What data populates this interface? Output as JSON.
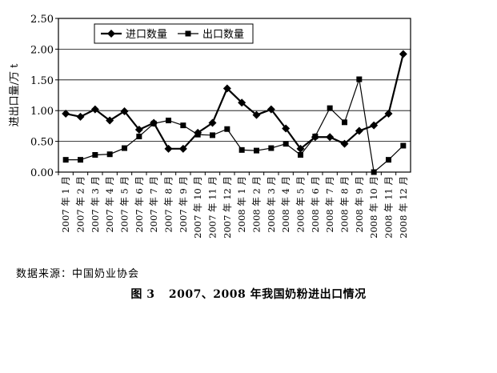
{
  "chart_data": {
    "type": "line",
    "ylabel": "进出口量/万 t",
    "ylim": [
      0,
      2.5
    ],
    "yticks": [
      "0.00",
      "0.50",
      "1.00",
      "1.50",
      "2.00",
      "2.50"
    ],
    "grid": "horizontal",
    "legend_position": "top-left",
    "categories": [
      "2007 年 1 月",
      "2007 年 2 月",
      "2007 年 3 月",
      "2007 年 4 月",
      "2007 年 5 月",
      "2007 年 6 月",
      "2007 年 7 月",
      "2007 年 8 月",
      "2007 年 9 月",
      "2007 年 10 月",
      "2007 年 11 月",
      "2007 年 12 月",
      "2008 年 1 月",
      "2008 年 2 月",
      "2008 年 3 月",
      "2008 年 4 月",
      "2008 年 5 月",
      "2008 年 6 月",
      "2008 年 7 月",
      "2008 年 8 月",
      "2008 年 9 月",
      "2008 年 10 月",
      "2008 年 11 月",
      "2008 年 12 月"
    ],
    "series": [
      {
        "name": "进口数量",
        "marker": "diamond",
        "values": [
          0.95,
          0.9,
          1.02,
          0.84,
          0.99,
          0.69,
          0.8,
          0.38,
          0.38,
          0.64,
          0.8,
          1.36,
          1.13,
          0.93,
          1.02,
          0.71,
          0.38,
          0.57,
          0.57,
          0.46,
          0.67,
          0.76,
          0.95,
          1.92
        ]
      },
      {
        "name": "出口数量",
        "marker": "square",
        "values": [
          0.2,
          0.2,
          0.28,
          0.29,
          0.39,
          0.58,
          0.79,
          0.84,
          0.76,
          0.61,
          0.6,
          0.7,
          0.36,
          0.35,
          0.39,
          0.46,
          0.28,
          0.58,
          1.04,
          0.81,
          1.51,
          0.0,
          0.2,
          0.43
        ]
      }
    ]
  },
  "source_text": "数据来源：中国奶业协会",
  "caption": {
    "figure": "图 3",
    "text": "2007、2008 年我国奶粉进出口情况"
  }
}
